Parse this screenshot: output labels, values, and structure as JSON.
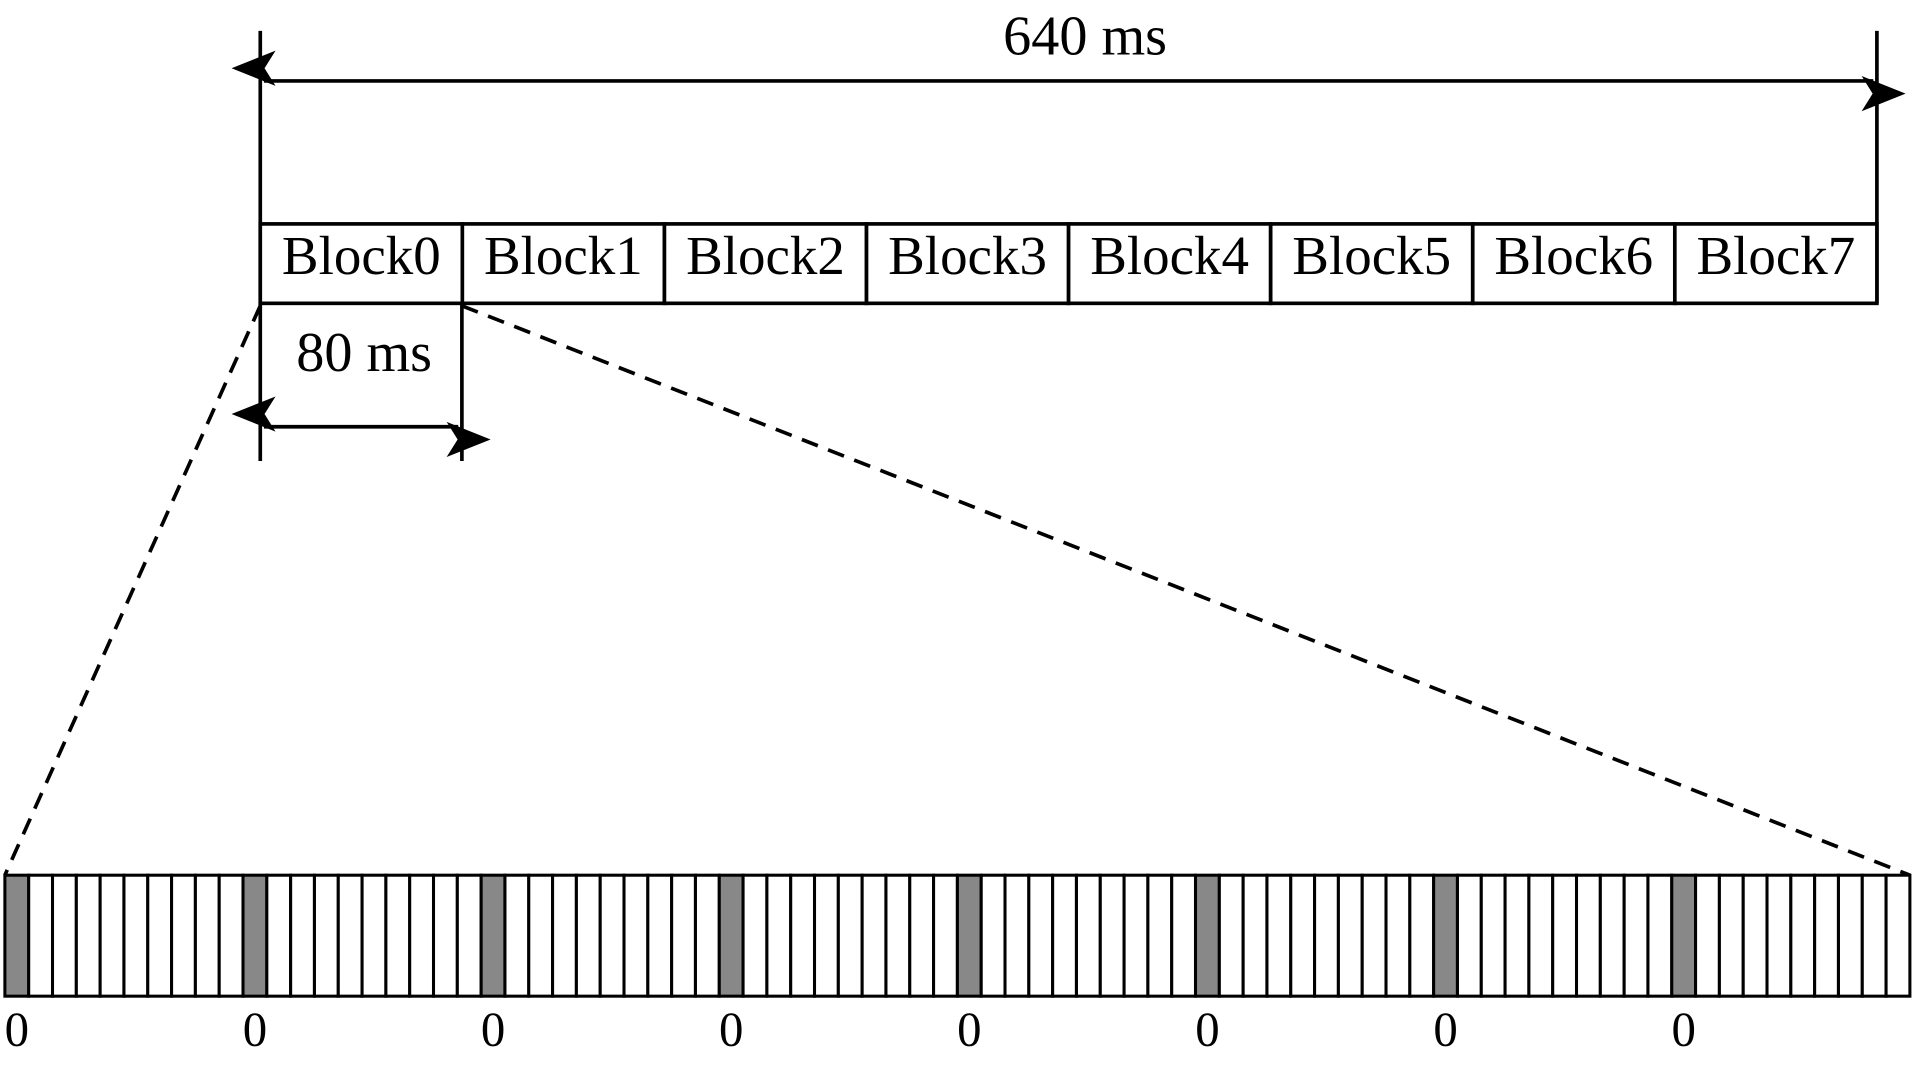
{
  "total_duration": "640 ms",
  "block_duration": "80 ms",
  "blocks": [
    "Block0",
    "Block1",
    "Block2",
    "Block3",
    "Block4",
    "Block5",
    "Block6",
    "Block7"
  ],
  "slot_labels": [
    "0",
    "0",
    "0",
    "0",
    "0",
    "0",
    "0",
    "0"
  ]
}
